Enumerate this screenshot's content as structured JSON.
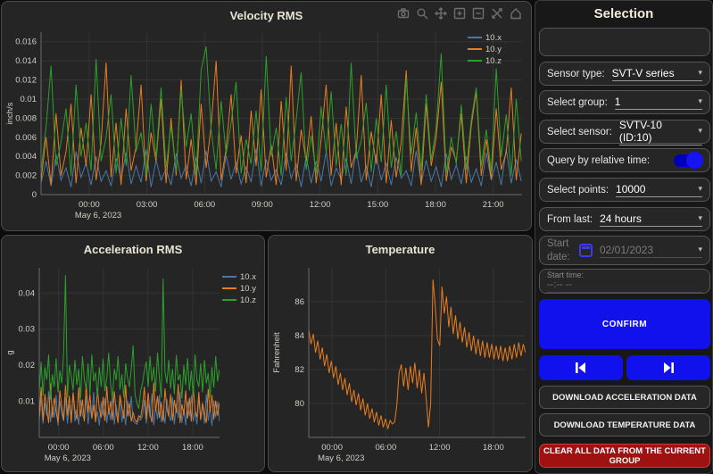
{
  "colors": {
    "accent_blue": "#1111ee",
    "danger_red": "#a01212",
    "series_x_blue": "#4878a8",
    "series_y_orange": "#e87d1e",
    "series_z_green": "#2ca02c"
  },
  "modebar": {
    "icons": [
      "camera",
      "zoom",
      "pan",
      "zoom-in",
      "zoom-out",
      "autoscale",
      "reset-axes"
    ]
  },
  "chart_data": [
    {
      "id": "velocity",
      "type": "line",
      "title": "Velocity RMS",
      "ylabel": "inch/s",
      "x_date_label": "May 6, 2023",
      "x_range": [
        -2.5,
        22.5
      ],
      "y_range": [
        0,
        0.017
      ],
      "x_ticks": [
        {
          "v": 0,
          "label": "00:00"
        },
        {
          "v": 3,
          "label": "03:00"
        },
        {
          "v": 6,
          "label": "06:00"
        },
        {
          "v": 9,
          "label": "09:00"
        },
        {
          "v": 12,
          "label": "12:00"
        },
        {
          "v": 15,
          "label": "15:00"
        },
        {
          "v": 18,
          "label": "18:00"
        },
        {
          "v": 21,
          "label": "21:00"
        }
      ],
      "y_ticks": [
        {
          "v": 0,
          "label": "0"
        },
        {
          "v": 0.002,
          "label": "0.002"
        },
        {
          "v": 0.004,
          "label": "0.004"
        },
        {
          "v": 0.006,
          "label": "0.006"
        },
        {
          "v": 0.008,
          "label": "0.008"
        },
        {
          "v": 0.01,
          "label": "0.01"
        },
        {
          "v": 0.012,
          "label": "0.012"
        },
        {
          "v": 0.014,
          "label": "0.014"
        },
        {
          "v": 0.016,
          "label": "0.016"
        }
      ],
      "legend_position": "top-right-inside",
      "series": [
        {
          "name": "10.x",
          "color": "#4878a8",
          "unit": "inch/s",
          "scale": 0.0001,
          "x_start": -2.5,
          "x_step": 0.26,
          "values": [
            12,
            35,
            9,
            42,
            15,
            28,
            8,
            45,
            18,
            33,
            10,
            40,
            14,
            25,
            9,
            38,
            16,
            44,
            11,
            30,
            13,
            47,
            8,
            36,
            15,
            27,
            10,
            43,
            17,
            31,
            9,
            39,
            12,
            46,
            14,
            24,
            8,
            41,
            16,
            34,
            11,
            29,
            13,
            48,
            9,
            37,
            15,
            26,
            10,
            44,
            17,
            32,
            8,
            40,
            12,
            35,
            14,
            45,
            9,
            28,
            16,
            38,
            11,
            47,
            13,
            30,
            8,
            42,
            15,
            33,
            10,
            39,
            17,
            25,
            9,
            46,
            12,
            36,
            14,
            29,
            8,
            43,
            16,
            31,
            11,
            40,
            13,
            27,
            9,
            44,
            15,
            34,
            10,
            48,
            12,
            37,
            14
          ]
        },
        {
          "name": "10.y",
          "color": "#e87d1e",
          "unit": "inch/s",
          "scale": 0.0001,
          "x_start": -2.5,
          "x_step": 0.26,
          "values": [
            15,
            60,
            10,
            85,
            20,
            45,
            95,
            12,
            70,
            30,
            105,
            15,
            55,
            138,
            18,
            75,
            10,
            90,
            25,
            50,
            115,
            14,
            65,
            35,
            100,
            12,
            80,
            20,
            120,
            16,
            58,
            10,
            95,
            28,
            72,
            140,
            15,
            48,
            105,
            22,
            62,
            12,
            88,
            30,
            110,
            18,
            52,
            10,
            98,
            25,
            135,
            14,
            68,
            35,
            82,
            12,
            58,
            115,
            20,
            75,
            10,
            92,
            28,
            46,
            125,
            15,
            66,
            32,
            105,
            12,
            78,
            18,
            55,
            130,
            24,
            70,
            10,
            95,
            30,
            60,
            118,
            14,
            50,
            35,
            85,
            12,
            72,
            108,
            20,
            58,
            16,
            90,
            26,
            44,
            112,
            15,
            64
          ]
        },
        {
          "name": "10.z",
          "color": "#2ca02c",
          "unit": "inch/s",
          "scale": 0.0001,
          "x_start": -2.5,
          "x_step": 0.26,
          "values": [
            25,
            70,
            135,
            30,
            55,
            90,
            20,
            115,
            40,
            75,
            25,
            142,
            35,
            60,
            105,
            22,
            80,
            30,
            125,
            45,
            65,
            20,
            95,
            38,
            112,
            28,
            72,
            24,
            110,
            50,
            85,
            20,
            130,
            155,
            68,
            26,
            98,
            42,
            75,
            118,
            22,
            58,
            32,
            88,
            24,
            145,
            40,
            70,
            20,
            102,
            35,
            78,
            128,
            26,
            62,
            22,
            92,
            44,
            108,
            30,
            74,
            20,
            138,
            38,
            56,
            96,
            24,
            80,
            34,
            115,
            28,
            66,
            20,
            122,
            42,
            86,
            25,
            105,
            36,
            70,
            148,
            22,
            60,
            32,
            94,
            26,
            78,
            112,
            30,
            68,
            24,
            132,
            40,
            84,
            20,
            100,
            35
          ]
        }
      ]
    },
    {
      "id": "acceleration",
      "type": "line",
      "title": "Acceleration RMS",
      "ylabel": "g",
      "x_date_label": "May 6, 2023",
      "x_range": [
        -2.6,
        21.6
      ],
      "y_range": [
        0,
        0.047
      ],
      "x_ticks": [
        {
          "v": 0,
          "label": "00:00"
        },
        {
          "v": 6,
          "label": "06:00"
        },
        {
          "v": 12,
          "label": "12:00"
        },
        {
          "v": 18,
          "label": "18:00"
        }
      ],
      "y_ticks": [
        {
          "v": 0.01,
          "label": "0.01"
        },
        {
          "v": 0.02,
          "label": "0.02"
        },
        {
          "v": 0.03,
          "label": "0.03"
        },
        {
          "v": 0.04,
          "label": "0.04"
        }
      ],
      "legend_position": "top-right-outside",
      "series": [
        {
          "name": "10.x",
          "color": "#4878a8",
          "unit": "g",
          "scale": 0.0001,
          "x_start": -2.6,
          "x_step": 0.252,
          "values": [
            45,
            110,
            38,
            95,
            60,
            128,
            42,
            85,
            55,
            118,
            33,
            100,
            65,
            45,
            112,
            38,
            92,
            58,
            124,
            44,
            78,
            35,
            105,
            62,
            48,
            116,
            36,
            88,
            52,
            126,
            44,
            72,
            33,
            98,
            60,
            110,
            40,
            82,
            48,
            120,
            36,
            90,
            55,
            108,
            42,
            76,
            34,
            102,
            58,
            114,
            46,
            40,
            36,
            52,
            48,
            60,
            104,
            38,
            96,
            56,
            122,
            34,
            86,
            50,
            118,
            42,
            74,
            38,
            106,
            62,
            46,
            112,
            36,
            94,
            54,
            126,
            40,
            80,
            34,
            100,
            58,
            116,
            44,
            70,
            36,
            108,
            50,
            92,
            38,
            120,
            46,
            84,
            32,
            102,
            56,
            98,
            44
          ]
        },
        {
          "name": "10.y",
          "color": "#e87d1e",
          "unit": "g",
          "scale": 0.0001,
          "x_start": -2.6,
          "x_step": 0.252,
          "values": [
            60,
            140,
            45,
            120,
            80,
            40,
            150,
            55,
            110,
            70,
            42,
            130,
            85,
            48,
            145,
            60,
            115,
            40,
            125,
            75,
            50,
            138,
            58,
            105,
            44,
            148,
            68,
            120,
            52,
            90,
            42,
            135,
            78,
            55,
            112,
            46,
            142,
            64,
            100,
            48,
            128,
            70,
            40,
            118,
            84,
            52,
            146,
            58,
            95,
            44,
            70,
            48,
            42,
            60,
            55,
            88,
            140,
            50,
            124,
            66,
            42,
            152,
            72,
            115,
            54,
            98,
            44,
            136,
            80,
            58,
            120,
            46,
            104,
            68,
            148,
            40,
            92,
            62,
            130,
            52,
            110,
            44,
            142,
            74,
            56,
            126,
            48,
            96,
            64,
            40,
            134,
            70,
            118,
            50,
            102,
            60,
            96
          ]
        },
        {
          "name": "10.z",
          "color": "#2ca02c",
          "unit": "g",
          "scale": 0.0001,
          "x_start": -2.6,
          "x_step": 0.252,
          "values": [
            130,
            210,
            115,
            195,
            160,
            230,
            105,
            175,
            140,
            220,
            125,
            185,
            150,
            235,
            450,
            110,
            200,
            170,
            130,
            215,
            145,
            190,
            108,
            225,
            160,
            135,
            205,
            120,
            230,
            155,
            180,
            112,
            195,
            140,
            218,
            128,
            165,
            235,
            148,
            108,
            190,
            158,
            225,
            132,
            175,
            110,
            205,
            165,
            140,
            190,
            255,
            120,
            95,
            80,
            130,
            150,
            185,
            210,
            140,
            225,
            155,
            195,
            128,
            235,
            165,
            110,
            440,
            180,
            150,
            215,
            135,
            190,
            120,
            228,
            158,
            175,
            108,
            200,
            145,
            220,
            130,
            185,
            115,
            230,
            160,
            140,
            205,
            125,
            215,
            150,
            178,
            110,
            195,
            138,
            225,
            155,
            188
          ]
        }
      ]
    },
    {
      "id": "temperature",
      "type": "line",
      "title": "Temperature",
      "ylabel": "Fahrenheit",
      "x_date_label": "May 6, 2023",
      "x_range": [
        -2.6,
        21.6
      ],
      "y_range": [
        78,
        88
      ],
      "x_ticks": [
        {
          "v": 0,
          "label": "00:00"
        },
        {
          "v": 6,
          "label": "06:00"
        },
        {
          "v": 12,
          "label": "12:00"
        },
        {
          "v": 18,
          "label": "18:00"
        }
      ],
      "y_ticks": [
        {
          "v": 80,
          "label": "80"
        },
        {
          "v": 82,
          "label": "82"
        },
        {
          "v": 84,
          "label": "84"
        },
        {
          "v": 86,
          "label": "86"
        }
      ],
      "legend_position": "none",
      "series": [
        {
          "name": "temperature",
          "color": "#e87d1e",
          "unit": "F",
          "scale": 0.1,
          "x_start": -2.6,
          "x_step": 0.252,
          "values": [
            843,
            835,
            841,
            830,
            837,
            826,
            833,
            822,
            829,
            818,
            825,
            815,
            822,
            811,
            818,
            808,
            815,
            805,
            812,
            801,
            808,
            799,
            806,
            796,
            803,
            793,
            800,
            791,
            797,
            789,
            795,
            787,
            793,
            786,
            791,
            785,
            790,
            788,
            789,
            799,
            818,
            823,
            810,
            821,
            808,
            822,
            812,
            824,
            809,
            820,
            806,
            818,
            803,
            786,
            800,
            873,
            858,
            838,
            834,
            869,
            853,
            863,
            845,
            857,
            841,
            852,
            838,
            848,
            836,
            845,
            833,
            842,
            831,
            840,
            829,
            838,
            828,
            837,
            827,
            836,
            827,
            835,
            826,
            834,
            826,
            834,
            825,
            833,
            825,
            834,
            826,
            835,
            827,
            836,
            828,
            835,
            830
          ]
        }
      ]
    }
  ],
  "sidebar": {
    "title": "Selection",
    "message_box": "",
    "sensor_type": {
      "label": "Sensor type:",
      "value": "SVT-V series"
    },
    "select_group": {
      "label": "Select group:",
      "value": "1"
    },
    "select_sensor": {
      "label": "Select sensor:",
      "value": "SVTV-10 (ID:10)"
    },
    "relative_time": {
      "label": "Query by relative time:",
      "enabled": true
    },
    "select_points": {
      "label": "Select points:",
      "value": "10000"
    },
    "from_last": {
      "label": "From last:",
      "value": "24 hours"
    },
    "start_date": {
      "label": "Start date:",
      "value": "02/01/2023",
      "disabled": true
    },
    "start_time": {
      "label": "Start time:",
      "value": "--:-- --",
      "disabled": true
    },
    "confirm_label": "CONFIRM",
    "download_accel_label": "DOWNLOAD ACCELERATION DATA",
    "download_temp_label": "DOWNLOAD TEMPERATURE DATA",
    "clear_label": "CLEAR ALL DATA FROM THE CURRENT GROUP"
  }
}
